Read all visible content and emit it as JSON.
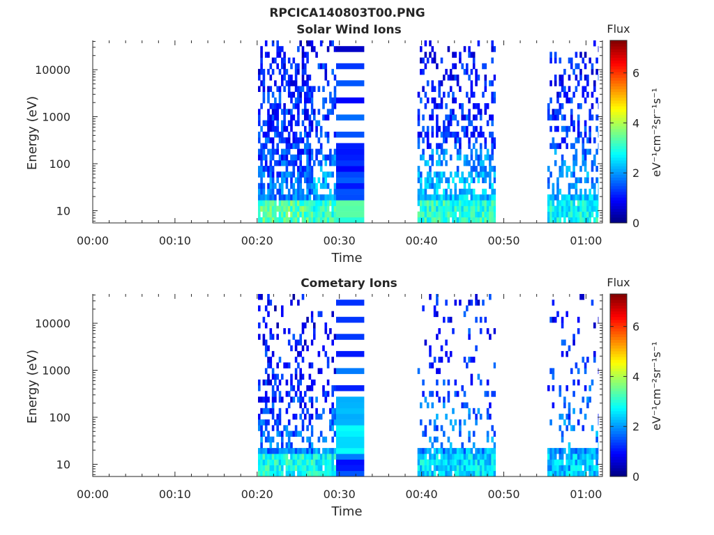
{
  "figure_title": "RPCICA140803T00.PNG",
  "chart_data": [
    {
      "type": "heatmap",
      "title": "Solar Wind Ions",
      "xlabel": "Time",
      "ylabel": "Energy (eV)",
      "y_scale": "log",
      "ylim": [
        5.5,
        42000
      ],
      "xlim_minutes": [
        0,
        62
      ],
      "x_ticks": [
        {
          "value": 0,
          "label": "00:00"
        },
        {
          "value": 10,
          "label": "00:10"
        },
        {
          "value": 20,
          "label": "00:20"
        },
        {
          "value": 30,
          "label": "00:30"
        },
        {
          "value": 40,
          "label": "00:40"
        },
        {
          "value": 50,
          "label": "00:50"
        },
        {
          "value": 60,
          "label": "01:00"
        }
      ],
      "y_ticks": [
        {
          "value": 10,
          "label": "10"
        },
        {
          "value": 100,
          "label": "100"
        },
        {
          "value": 1000,
          "label": "1000"
        },
        {
          "value": 10000,
          "label": "10000"
        }
      ],
      "colorbar": {
        "title": "Flux",
        "label": "eV⁻¹cm⁻²sr⁻¹s⁻¹",
        "range": [
          0,
          7.3
        ],
        "ticks": [
          "0",
          "2",
          "4",
          "6"
        ],
        "colormap": "jet"
      },
      "data_segments": [
        {
          "start": 20.1,
          "end": 26.8,
          "flux_low": 3.3,
          "flux_mid": 1.6,
          "flux_high": 1.2,
          "density": 0.85
        },
        {
          "start": 26.8,
          "end": 29.6,
          "flux_low": 3.1,
          "flux_mid": 2.0,
          "flux_high": 1.3,
          "density": 0.45
        },
        {
          "start": 29.6,
          "end": 33.0,
          "flux_low": 3.0,
          "flux_mid": 1.5,
          "flux_high": 1.2,
          "density": 1.0,
          "steady": true
        },
        {
          "start": 39.5,
          "end": 49.0,
          "flux_low": 3.0,
          "flux_mid": 2.1,
          "flux_high": 1.2,
          "density": 0.6
        },
        {
          "start": 55.3,
          "end": 61.5,
          "flux_low": 2.8,
          "flux_mid": 2.0,
          "flux_high": 1.2,
          "density": 0.5
        }
      ]
    },
    {
      "type": "heatmap",
      "title": "Cometary Ions",
      "xlabel": "Time",
      "ylabel": "Energy (eV)",
      "y_scale": "log",
      "ylim": [
        5.5,
        42000
      ],
      "xlim_minutes": [
        0,
        62
      ],
      "x_ticks": [
        {
          "value": 0,
          "label": "00:00"
        },
        {
          "value": 10,
          "label": "00:10"
        },
        {
          "value": 20,
          "label": "00:20"
        },
        {
          "value": 30,
          "label": "00:30"
        },
        {
          "value": 40,
          "label": "00:40"
        },
        {
          "value": 50,
          "label": "00:50"
        },
        {
          "value": 60,
          "label": "01:00"
        }
      ],
      "y_ticks": [
        {
          "value": 10,
          "label": "10"
        },
        {
          "value": 100,
          "label": "100"
        },
        {
          "value": 1000,
          "label": "1000"
        },
        {
          "value": 10000,
          "label": "10000"
        }
      ],
      "colorbar": {
        "title": "Flux",
        "label": "eV⁻¹cm⁻²sr⁻¹s⁻¹",
        "range": [
          0,
          7.3
        ],
        "ticks": [
          "0",
          "2",
          "4",
          "6"
        ],
        "colormap": "jet"
      },
      "data_segments": [
        {
          "start": 20.1,
          "end": 26.8,
          "flux_low": 2.9,
          "flux_mid": 1.5,
          "flux_high": 1.1,
          "density": 0.5
        },
        {
          "start": 26.8,
          "end": 29.6,
          "flux_low": 2.8,
          "flux_mid": 1.7,
          "flux_high": 1.1,
          "density": 0.25
        },
        {
          "start": 29.6,
          "end": 33.0,
          "flux_low": 1.5,
          "flux_mid": 2.3,
          "flux_high": 1.5,
          "density": 0.5,
          "steady": true
        },
        {
          "start": 39.5,
          "end": 49.0,
          "flux_low": 2.5,
          "flux_mid": 1.8,
          "flux_high": 1.3,
          "density": 0.25
        },
        {
          "start": 55.3,
          "end": 61.5,
          "flux_low": 2.3,
          "flux_mid": 1.8,
          "flux_high": 1.3,
          "density": 0.2
        }
      ]
    }
  ]
}
